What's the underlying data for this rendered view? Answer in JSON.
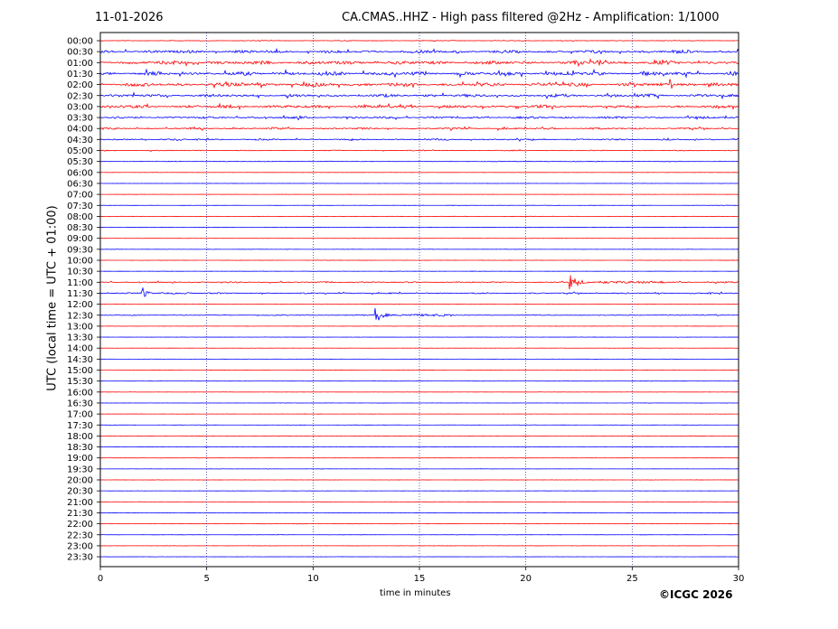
{
  "header": {
    "date": "11-01-2026",
    "title": "CA.CMAS..HHZ - High pass filtered @2Hz - Amplification: 1/1000"
  },
  "footer": {
    "copyright": "©ICGC 2026"
  },
  "chart_data": {
    "type": "line",
    "title": "CA.CMAS..HHZ - High pass filtered @2Hz - Amplification: 1/1000",
    "xlabel": "time in minutes",
    "ylabel": "UTC (local time = UTC + 01:00)",
    "xlim": [
      0,
      30
    ],
    "x_ticks": [
      "0",
      "5",
      "10",
      "15",
      "20",
      "25",
      "30"
    ],
    "grid": "vertical dotted lines every 5 minutes",
    "trace_colors": [
      "#ff0000",
      "#0000ff"
    ],
    "row_labels": [
      "00:00",
      "00:30",
      "01:00",
      "01:30",
      "02:00",
      "02:30",
      "03:00",
      "03:30",
      "04:00",
      "04:30",
      "05:00",
      "05:30",
      "06:00",
      "06:30",
      "07:00",
      "07:30",
      "08:00",
      "08:30",
      "09:00",
      "09:30",
      "10:00",
      "10:30",
      "11:00",
      "11:30",
      "12:00",
      "12:30",
      "13:00",
      "13:30",
      "14:00",
      "14:30",
      "15:00",
      "15:30",
      "16:00",
      "16:30",
      "17:00",
      "17:30",
      "18:00",
      "18:30",
      "19:00",
      "19:30",
      "20:00",
      "20:30",
      "21:00",
      "21:30",
      "22:00",
      "22:30",
      "23:00",
      "23:30"
    ],
    "noise_level": [
      0.2,
      0.8,
      1.0,
      1.0,
      1.0,
      0.8,
      0.8,
      0.6,
      0.5,
      0.4,
      0.25,
      0.15,
      0.06,
      0.06,
      0.06,
      0.06,
      0.06,
      0.06,
      0.06,
      0.06,
      0.06,
      0.06,
      0.35,
      0.35,
      0.1,
      0.25,
      0.06,
      0.06,
      0.06,
      0.06,
      0.06,
      0.06,
      0.06,
      0.06,
      0.06,
      0.06,
      0.06,
      0.06,
      0.06,
      0.06,
      0.06,
      0.06,
      0.06,
      0.06,
      0.06,
      0.06,
      0.06,
      0.06
    ],
    "events": [
      {
        "row": "11:00",
        "minute": 22.1,
        "amplitude": 1.0,
        "duration_min": 1.5
      },
      {
        "row": "11:30",
        "minute": 2.0,
        "amplitude": 0.7,
        "duration_min": 0.8
      },
      {
        "row": "12:30",
        "minute": 12.95,
        "amplitude": 1.0,
        "duration_min": 1.2
      },
      {
        "row": "02:00",
        "minute": 26.8,
        "amplitude": 0.9,
        "duration_min": 0.4
      },
      {
        "row": "01:00",
        "minute": 23.5,
        "amplitude": 0.5,
        "duration_min": 0.6
      }
    ]
  }
}
